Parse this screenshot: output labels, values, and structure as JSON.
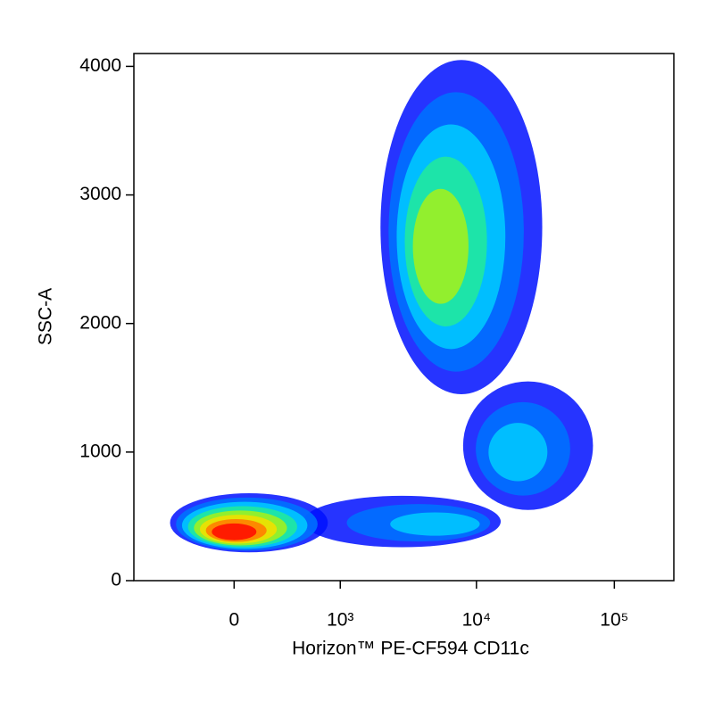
{
  "chart_data": {
    "type": "density",
    "x_label": "Horizon™ PE-CF594 CD11c",
    "y_label": "SSC-A",
    "xscale": "asinh",
    "xlim": [
      -900,
      270000
    ],
    "xticks": [
      0,
      {
        "value": 1000,
        "label": "10³"
      },
      {
        "value": 10000,
        "label": "10⁴"
      },
      {
        "value": 100000,
        "label": "10⁵"
      }
    ],
    "ylim": [
      0,
      4100
    ],
    "yticks": [
      0,
      1000,
      2000,
      3000,
      4000
    ],
    "colors": [
      "#0010ff",
      "#0070ff",
      "#00c8ff",
      "#20e8a0",
      "#a0f020",
      "#f0e000",
      "#ff8000",
      "#ff1000"
    ],
    "clusters": [
      {
        "x": 5500,
        "y": 2600,
        "xmin": 2000,
        "xmax": 30000,
        "ymin": 1450,
        "ymax": 4050,
        "peak_color": "#a0f020"
      },
      {
        "x": 20000,
        "y": 1000,
        "xmin": 8000,
        "xmax": 70000,
        "ymin": 550,
        "ymax": 1550,
        "peak_color": "#00c8ff"
      },
      {
        "x": 5000,
        "y": 440,
        "xmin": 500,
        "xmax": 15000,
        "ymin": 260,
        "ymax": 660,
        "peak_color": "#00c8ff"
      },
      {
        "x": 0,
        "y": 380,
        "xmin": -450,
        "xmax": 800,
        "ymin": 220,
        "ymax": 680,
        "peak_color": "#ff1000"
      }
    ]
  }
}
